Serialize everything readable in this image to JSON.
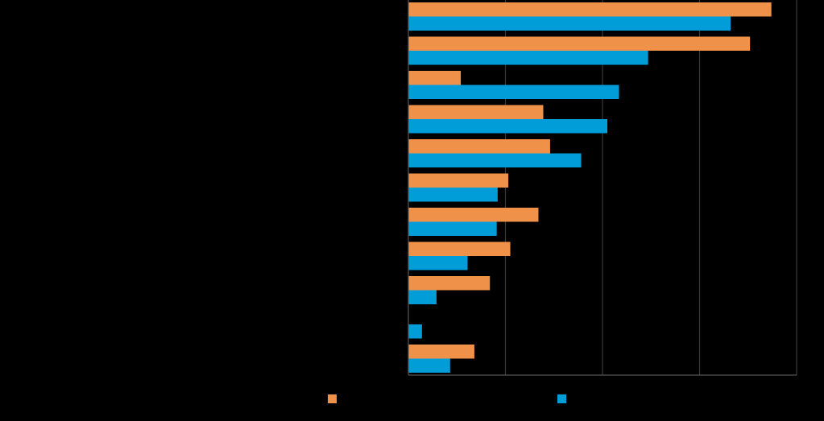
{
  "chart_data": {
    "type": "bar",
    "orientation": "horizontal",
    "title": "",
    "xlabel": "",
    "ylabel": "",
    "xlim": [
      0,
      40
    ],
    "x_gridlines": [
      10,
      20,
      30,
      40
    ],
    "grid": true,
    "categories": [
      "",
      "",
      "",
      "",
      "",
      "",
      "",
      "",
      "",
      "",
      ""
    ],
    "series": [
      {
        "color": "#F0914A",
        "values": [
          37.4,
          35.2,
          5.4,
          13.9,
          14.6,
          10.3,
          13.4,
          10.5,
          8.4,
          0,
          6.8
        ]
      },
      {
        "color": "#009DD9",
        "values": [
          33.2,
          24.7,
          21.7,
          20.5,
          17.8,
          9.2,
          9.1,
          6.1,
          2.9,
          1.4,
          4.3
        ]
      }
    ],
    "legend_position": "bottom"
  }
}
